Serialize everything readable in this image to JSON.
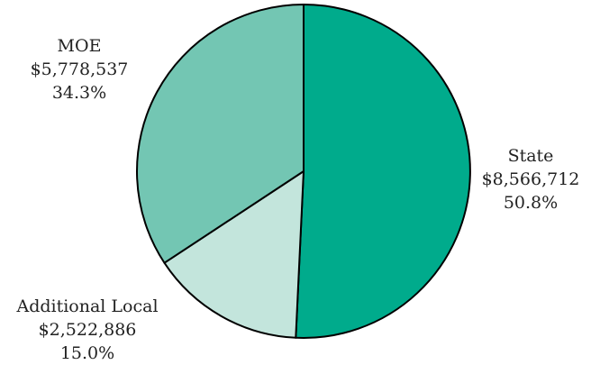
{
  "chart_data": {
    "type": "pie",
    "slices": [
      {
        "label": "State",
        "amount": "$8,566,712",
        "percent": "50.8%",
        "value": 50.8,
        "color": "#00ab8c"
      },
      {
        "label": "Additional Local",
        "amount": "$2,522,886",
        "percent": "15.0%",
        "value": 15.0,
        "color": "#c3e5dc"
      },
      {
        "label": "MOE",
        "amount": "$5,778,537",
        "percent": "34.3%",
        "value": 34.3,
        "color": "#73c6b3"
      }
    ],
    "start_angle_deg": 0,
    "direction": "clockwise",
    "edge_color": "#000000"
  }
}
